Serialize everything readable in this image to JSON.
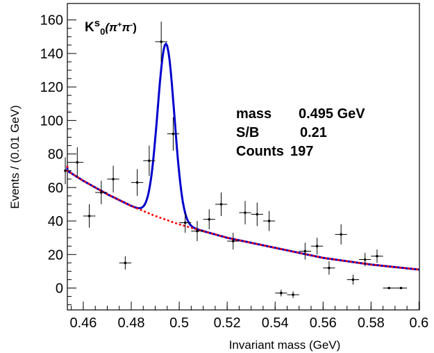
{
  "chart_data": {
    "type": "scatter",
    "title": "K^s_0(π⁺π⁻)",
    "title_parts": {
      "main": "K",
      "sup": "s",
      "sub": "0",
      "paren_open": "(π",
      "plus": "+",
      "pi": "π",
      "minus": "-",
      "paren_close": ")"
    },
    "xlabel": "Invariant mass (GeV)",
    "ylabel": "Events / (0.01 GeV)",
    "xlim": [
      0.45,
      0.6
    ],
    "ylim": [
      -15,
      165
    ],
    "xticks": [
      0.46,
      0.48,
      0.5,
      0.52,
      0.54,
      0.56,
      0.58,
      0.6
    ],
    "xtick_labels": [
      "0.46",
      "0.48",
      "0.5",
      "0.52",
      "0.54",
      "0.56",
      "0.58",
      "0.6"
    ],
    "yticks": [
      0,
      20,
      40,
      60,
      80,
      100,
      120,
      140,
      160
    ],
    "ytick_labels": [
      "0",
      "20",
      "40",
      "60",
      "80",
      "100",
      "120",
      "140",
      "160"
    ],
    "stats": [
      {
        "label": "mass",
        "value": "0.495 GeV"
      },
      {
        "label": "S/B",
        "value": "0.21"
      },
      {
        "label": "Counts",
        "value": "197"
      }
    ],
    "points": [
      {
        "x": 0.4525,
        "y": 70,
        "err": 8
      },
      {
        "x": 0.4575,
        "y": 75,
        "err": 9
      },
      {
        "x": 0.4625,
        "y": 43,
        "err": 7
      },
      {
        "x": 0.4675,
        "y": 57,
        "err": 7
      },
      {
        "x": 0.4725,
        "y": 65,
        "err": 8
      },
      {
        "x": 0.4775,
        "y": 15,
        "err": 4
      },
      {
        "x": 0.4825,
        "y": 63,
        "err": 8
      },
      {
        "x": 0.4875,
        "y": 76,
        "err": 9
      },
      {
        "x": 0.4925,
        "y": 147,
        "err": 12
      },
      {
        "x": 0.4975,
        "y": 92,
        "err": 10
      },
      {
        "x": 0.5025,
        "y": 39,
        "err": 6
      },
      {
        "x": 0.5075,
        "y": 34,
        "err": 6
      },
      {
        "x": 0.5125,
        "y": 41,
        "err": 6
      },
      {
        "x": 0.5175,
        "y": 50,
        "err": 7
      },
      {
        "x": 0.5225,
        "y": 28,
        "err": 5
      },
      {
        "x": 0.5275,
        "y": 45,
        "err": 7
      },
      {
        "x": 0.5325,
        "y": 44,
        "err": 7
      },
      {
        "x": 0.5375,
        "y": 40,
        "err": 6
      },
      {
        "x": 0.5425,
        "y": -3,
        "err": 2
      },
      {
        "x": 0.5475,
        "y": -4,
        "err": 2
      },
      {
        "x": 0.5525,
        "y": 22,
        "err": 5
      },
      {
        "x": 0.5575,
        "y": 25,
        "err": 5
      },
      {
        "x": 0.5625,
        "y": 12,
        "err": 4
      },
      {
        "x": 0.5675,
        "y": 32,
        "err": 6
      },
      {
        "x": 0.5725,
        "y": 5,
        "err": 3
      },
      {
        "x": 0.5775,
        "y": 17,
        "err": 4
      },
      {
        "x": 0.5825,
        "y": 19,
        "err": 4
      },
      {
        "x": 0.5875,
        "y": 0,
        "err": 0.5
      },
      {
        "x": 0.5925,
        "y": 0,
        "err": 0.5
      }
    ],
    "bin_half_width": 0.0025,
    "fit": {
      "mean": 0.4945,
      "sigma": 0.0035,
      "amplitude": 105,
      "background": [
        {
          "x": 0.45,
          "y": 73
        },
        {
          "x": 0.46,
          "y": 64
        },
        {
          "x": 0.47,
          "y": 56
        },
        {
          "x": 0.48,
          "y": 49
        },
        {
          "x": 0.49,
          "y": 43
        },
        {
          "x": 0.5,
          "y": 38
        },
        {
          "x": 0.51,
          "y": 34
        },
        {
          "x": 0.52,
          "y": 30
        },
        {
          "x": 0.53,
          "y": 27
        },
        {
          "x": 0.54,
          "y": 24
        },
        {
          "x": 0.55,
          "y": 21
        },
        {
          "x": 0.56,
          "y": 18
        },
        {
          "x": 0.57,
          "y": 16
        },
        {
          "x": 0.58,
          "y": 14
        },
        {
          "x": 0.59,
          "y": 12.5
        },
        {
          "x": 0.6,
          "y": 11
        }
      ],
      "total_color": "#0000cc",
      "background_color": "#ff0000"
    }
  }
}
